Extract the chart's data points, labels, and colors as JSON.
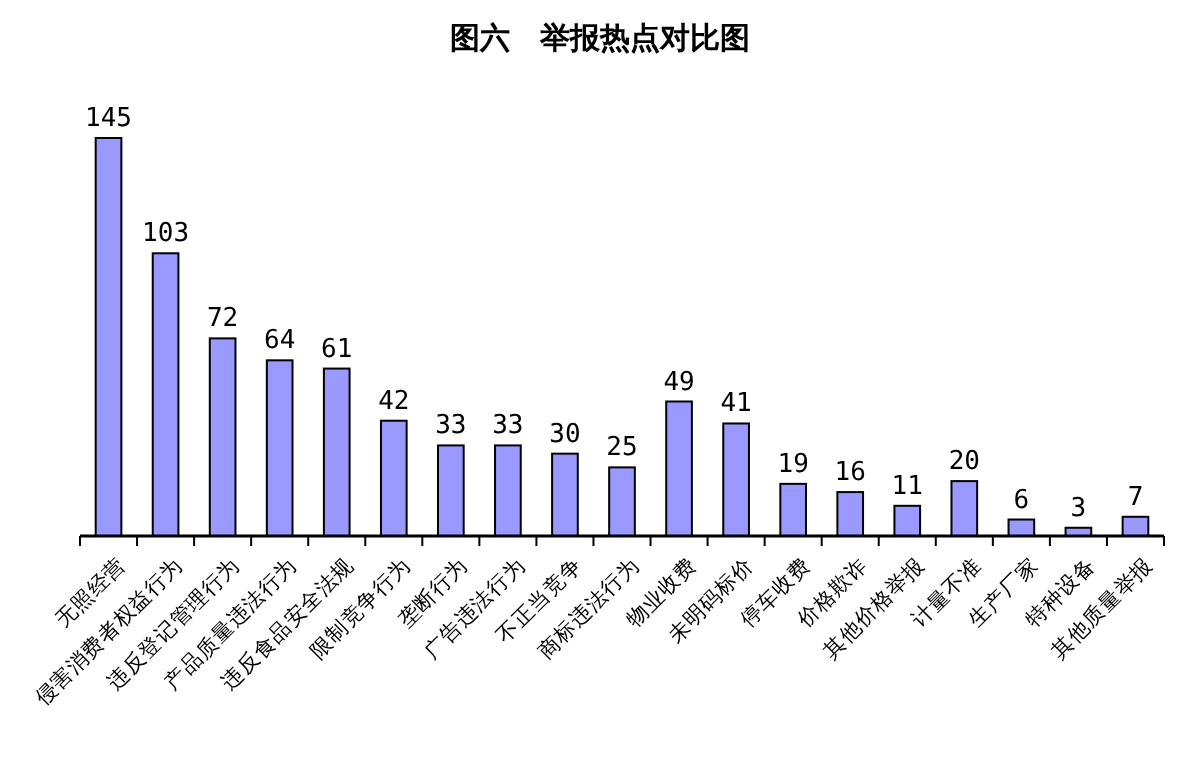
{
  "chart_data": {
    "type": "bar",
    "title": "图六　举报热点对比图",
    "categories": [
      "无照经营",
      "侵害消费者权益行为",
      "违反登记管理行为",
      "产品质量违法行为",
      "违反食品安全法规",
      "限制竞争行为",
      "垄断行为",
      "广告违法行为",
      "不正当竞争",
      "商标违法行为",
      "物业收费",
      "未明码标价",
      "停车收费",
      "价格欺诈",
      "其他价格举报",
      "计量不准",
      "生产厂家",
      "特种设备",
      "其他质量举报"
    ],
    "values": [
      145,
      103,
      72,
      64,
      61,
      42,
      33,
      33,
      30,
      25,
      49,
      41,
      19,
      16,
      11,
      20,
      6,
      3,
      7
    ],
    "color": "#9999ff",
    "data_labels": true
  }
}
